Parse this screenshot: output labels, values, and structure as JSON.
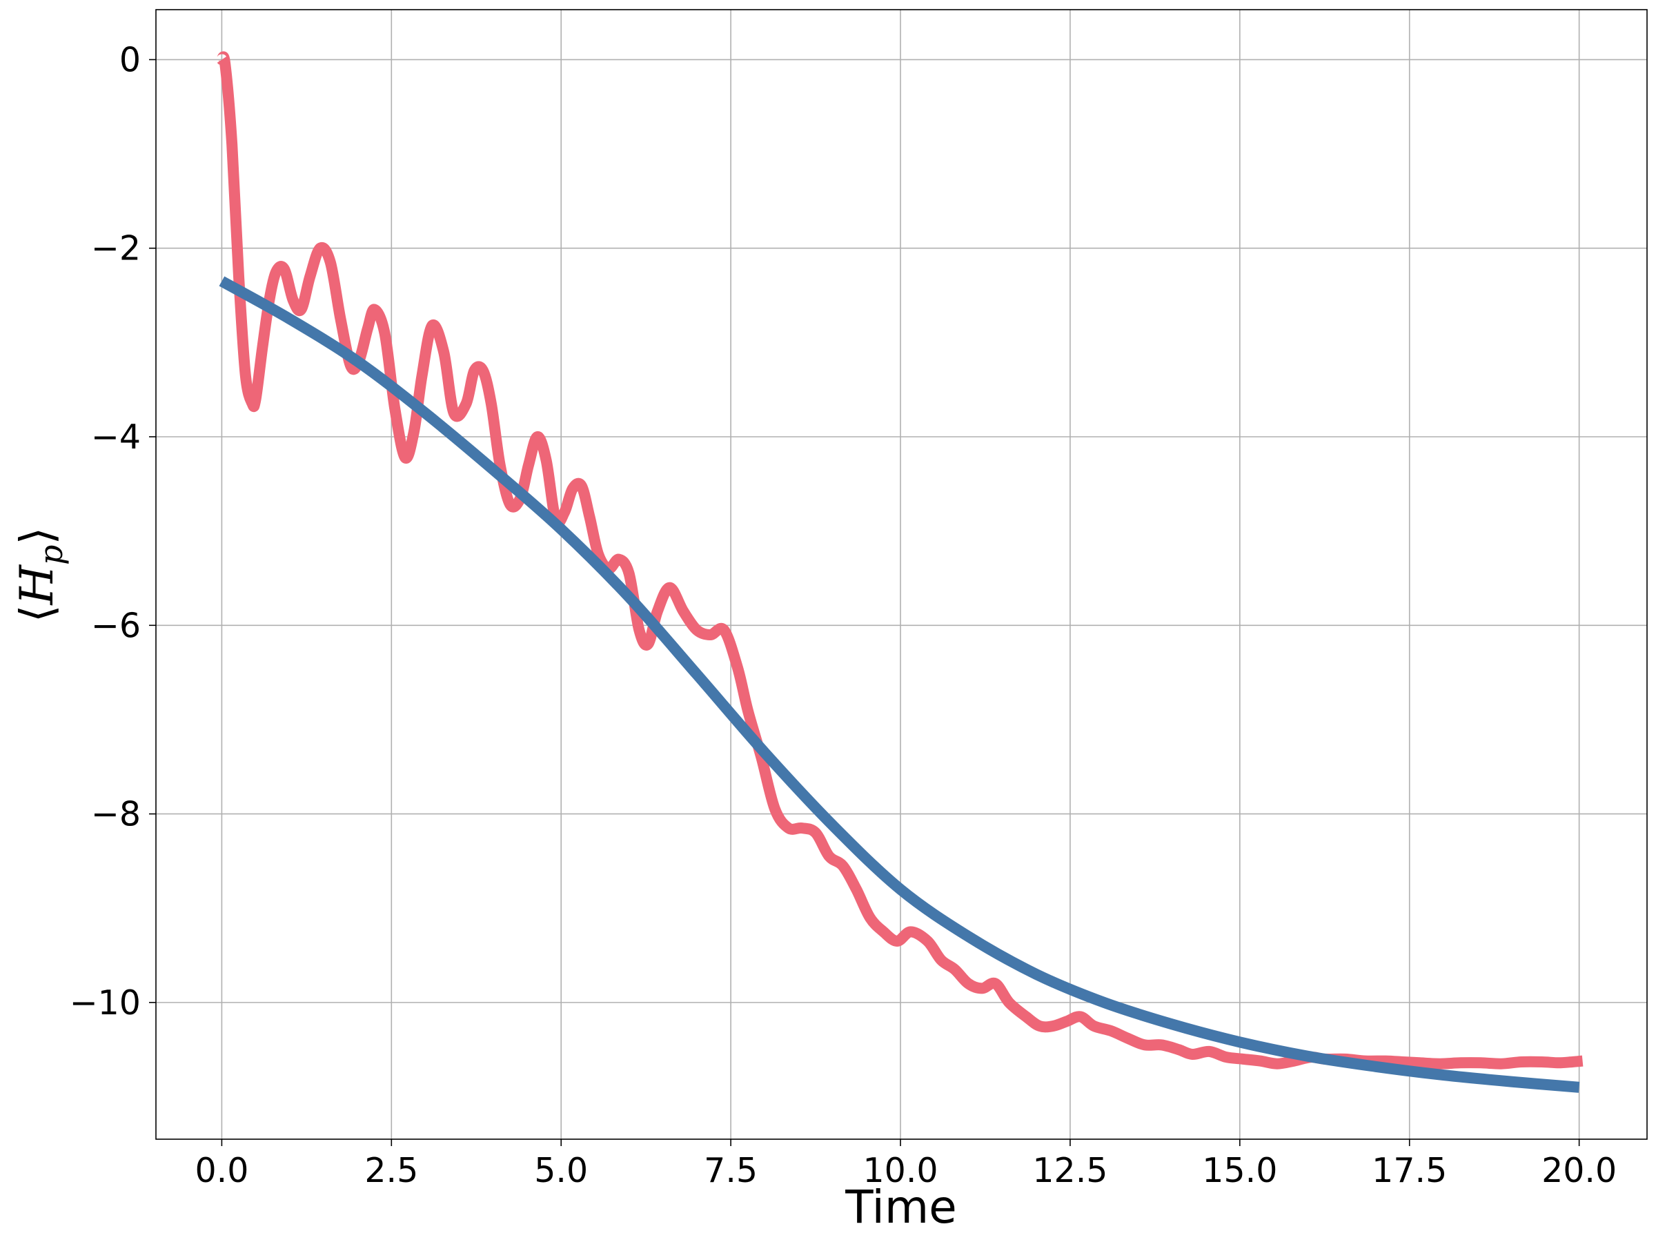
{
  "chart_data": {
    "type": "line",
    "xlabel": "Time",
    "ylabel": "⟨Hp⟩",
    "ylabel_parts": {
      "left": "⟨",
      "main": "H",
      "sub": "p",
      "right": "⟩"
    },
    "xlim": [
      -0.97,
      21.0
    ],
    "ylim": [
      -11.45,
      0.53
    ],
    "xticks": [
      0.0,
      2.5,
      5.0,
      7.5,
      10.0,
      12.5,
      15.0,
      17.5,
      20.0
    ],
    "xtick_labels": [
      "0.0",
      "2.5",
      "5.0",
      "7.5",
      "10.0",
      "12.5",
      "15.0",
      "17.5",
      "20.0"
    ],
    "yticks": [
      0,
      -2,
      -4,
      -6,
      -8,
      -10
    ],
    "ytick_labels": [
      "0",
      "−2",
      "−4",
      "−6",
      "−8",
      "−10"
    ],
    "grid": true,
    "colors": {
      "oscillating": "#ee6677",
      "smooth": "#4477aa"
    },
    "series": [
      {
        "color": "#ee6677",
        "x": [
          0.0,
          0.05,
          0.15,
          0.25,
          0.35,
          0.45,
          0.5,
          0.6,
          0.7,
          0.8,
          0.92,
          1.05,
          1.17,
          1.3,
          1.45,
          1.6,
          1.75,
          1.9,
          2.02,
          2.15,
          2.25,
          2.4,
          2.55,
          2.7,
          2.83,
          2.95,
          3.1,
          3.27,
          3.42,
          3.6,
          3.72,
          3.85,
          3.97,
          4.1,
          4.25,
          4.4,
          4.52,
          4.65,
          4.78,
          4.92,
          5.05,
          5.17,
          5.3,
          5.42,
          5.55,
          5.7,
          5.85,
          6.0,
          6.15,
          6.28,
          6.42,
          6.6,
          6.8,
          7.0,
          7.2,
          7.4,
          7.6,
          7.75,
          7.95,
          8.15,
          8.35,
          8.55,
          8.75,
          8.95,
          9.15,
          9.35,
          9.55,
          9.75,
          9.95,
          10.15,
          10.4,
          10.6,
          10.8,
          11.0,
          11.2,
          11.4,
          11.6,
          11.85,
          12.05,
          12.25,
          12.45,
          12.65,
          12.85,
          13.1,
          13.35,
          13.6,
          13.85,
          14.1,
          14.3,
          14.55,
          14.8,
          15.05,
          15.3,
          15.55,
          15.8,
          16.05,
          16.25,
          16.55,
          16.85,
          17.15,
          17.4,
          17.65,
          17.95,
          18.25,
          18.55,
          18.85,
          19.15,
          19.45,
          19.7,
          19.9,
          20.05
        ],
        "y": [
          0.0,
          -0.05,
          -0.9,
          -2.3,
          -3.35,
          -3.65,
          -3.6,
          -3.05,
          -2.55,
          -2.25,
          -2.22,
          -2.55,
          -2.65,
          -2.3,
          -2.0,
          -2.15,
          -2.75,
          -3.25,
          -3.2,
          -2.85,
          -2.65,
          -2.9,
          -3.7,
          -4.22,
          -3.95,
          -3.35,
          -2.82,
          -3.1,
          -3.75,
          -3.65,
          -3.3,
          -3.3,
          -3.65,
          -4.3,
          -4.72,
          -4.65,
          -4.3,
          -4.0,
          -4.25,
          -4.88,
          -4.8,
          -4.55,
          -4.52,
          -4.85,
          -5.25,
          -5.4,
          -5.3,
          -5.45,
          -6.05,
          -6.2,
          -5.85,
          -5.6,
          -5.85,
          -6.05,
          -6.1,
          -6.05,
          -6.45,
          -6.9,
          -7.4,
          -7.95,
          -8.15,
          -8.15,
          -8.2,
          -8.45,
          -8.55,
          -8.8,
          -9.1,
          -9.25,
          -9.35,
          -9.25,
          -9.35,
          -9.55,
          -9.65,
          -9.8,
          -9.85,
          -9.8,
          -10.0,
          -10.15,
          -10.25,
          -10.25,
          -10.2,
          -10.15,
          -10.25,
          -10.3,
          -10.38,
          -10.45,
          -10.45,
          -10.5,
          -10.55,
          -10.52,
          -10.58,
          -10.6,
          -10.62,
          -10.65,
          -10.62,
          -10.58,
          -10.6,
          -10.6,
          -10.62,
          -10.62,
          -10.63,
          -10.64,
          -10.65,
          -10.64,
          -10.64,
          -10.65,
          -10.63,
          -10.63,
          -10.64,
          -10.63,
          -10.62
        ]
      },
      {
        "color": "#4477aa",
        "x": [
          0.0,
          1.0,
          2.0,
          3.0,
          4.0,
          5.0,
          6.0,
          7.0,
          8.0,
          9.0,
          10.0,
          11.0,
          12.0,
          13.0,
          14.0,
          15.0,
          16.0,
          17.0,
          18.0,
          19.0,
          20.0
        ],
        "y": [
          -2.35,
          -2.75,
          -3.2,
          -3.75,
          -4.35,
          -4.98,
          -5.7,
          -6.52,
          -7.35,
          -8.12,
          -8.8,
          -9.3,
          -9.7,
          -10.0,
          -10.23,
          -10.42,
          -10.57,
          -10.68,
          -10.77,
          -10.84,
          -10.9
        ]
      }
    ]
  }
}
